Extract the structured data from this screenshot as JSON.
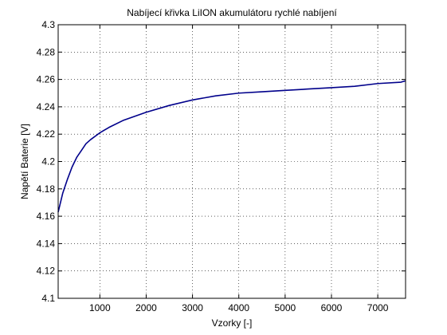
{
  "chart_data": {
    "type": "line",
    "title": "Nabíjecí křivka LiION akumulátoru rychlé nabíjení",
    "xlabel": "Vzorky [-]",
    "ylabel": "Napětí Baterie [V]",
    "xlim": [
      100,
      7600
    ],
    "ylim": [
      4.1,
      4.3
    ],
    "xticks": [
      1000,
      2000,
      3000,
      4000,
      5000,
      6000,
      7000
    ],
    "yticks": [
      4.1,
      4.12,
      4.14,
      4.16,
      4.18,
      4.2,
      4.22,
      4.24,
      4.26,
      4.28,
      4.3
    ],
    "xtick_labels": [
      "1000",
      "2000",
      "3000",
      "4000",
      "5000",
      "6000",
      "7000"
    ],
    "ytick_labels": [
      "4.1",
      "4.12",
      "4.14",
      "4.16",
      "4.18",
      "4.2",
      "4.22",
      "4.24",
      "4.26",
      "4.28",
      "4.3"
    ],
    "grid": true,
    "grid_style": "dotted",
    "line_color": "#00008b",
    "series": [
      {
        "x": [
          100,
          200,
          300,
          400,
          500,
          600,
          700,
          800,
          1000,
          1200,
          1500,
          2000,
          2500,
          3000,
          3500,
          4000,
          4500,
          5000,
          5500,
          6000,
          6500,
          7000,
          7500,
          7600
        ],
        "y": [
          4.163,
          4.177,
          4.187,
          4.196,
          4.203,
          4.208,
          4.213,
          4.216,
          4.221,
          4.225,
          4.23,
          4.236,
          4.241,
          4.245,
          4.248,
          4.25,
          4.251,
          4.252,
          4.253,
          4.254,
          4.255,
          4.257,
          4.258,
          4.259
        ]
      }
    ]
  }
}
